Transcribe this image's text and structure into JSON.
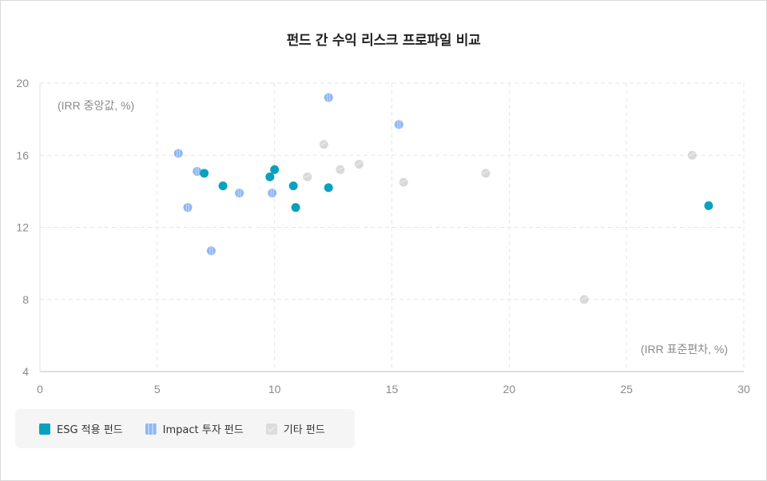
{
  "title": "펀드 간 수익 리스크 프로파일 비교",
  "chart_data": {
    "type": "scatter",
    "xlabel": "(IRR 표준편차, %)",
    "ylabel": "(IRR 중앙값, %)",
    "xlim": [
      0,
      30
    ],
    "ylim": [
      4,
      20
    ],
    "xticks": [
      "0",
      "5",
      "10",
      "15",
      "20",
      "25",
      "30"
    ],
    "yticks": [
      "4",
      "8",
      "12",
      "16",
      "20"
    ],
    "grid": true,
    "legend_position": "bottom-left",
    "series": [
      {
        "name": "ESG 적용 펀드",
        "color": "#0aa1c0",
        "points": [
          [
            7.0,
            15.0
          ],
          [
            7.8,
            14.3
          ],
          [
            9.8,
            14.8
          ],
          [
            10.0,
            15.2
          ],
          [
            10.8,
            14.3
          ],
          [
            10.9,
            13.1
          ],
          [
            12.3,
            14.2
          ],
          [
            28.5,
            13.2
          ]
        ]
      },
      {
        "name": "Impact 투자 펀드",
        "color": "#8fb6f4",
        "points": [
          [
            5.9,
            16.1
          ],
          [
            6.3,
            13.1
          ],
          [
            6.7,
            15.1
          ],
          [
            7.3,
            10.7
          ],
          [
            8.5,
            13.9
          ],
          [
            9.9,
            13.9
          ],
          [
            12.3,
            19.2
          ],
          [
            15.3,
            17.7
          ]
        ]
      },
      {
        "name": "기타 펀드",
        "color": "#d9d9d9",
        "points": [
          [
            11.4,
            14.8
          ],
          [
            12.1,
            16.6
          ],
          [
            12.8,
            15.2
          ],
          [
            13.6,
            15.5
          ],
          [
            15.5,
            14.5
          ],
          [
            19.0,
            15.0
          ],
          [
            23.2,
            8.0
          ],
          [
            27.8,
            16.0
          ]
        ]
      }
    ]
  }
}
